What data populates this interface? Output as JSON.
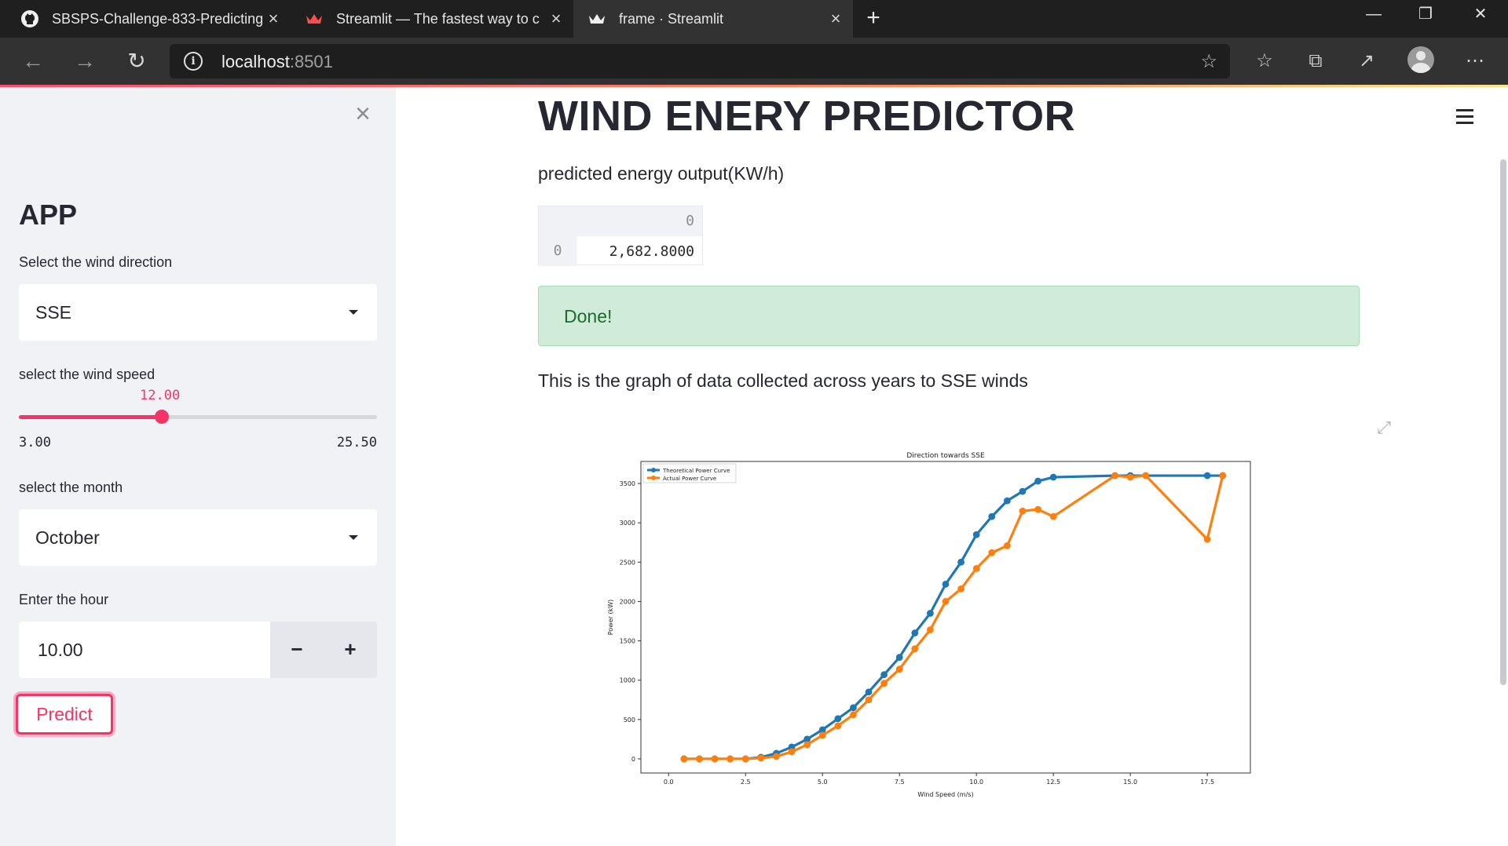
{
  "browser": {
    "tabs": [
      {
        "title": "SBSPS-Challenge-833-Predicting",
        "icon": "github-icon"
      },
      {
        "title": "Streamlit — The fastest way to cr",
        "icon": "streamlit-crown-icon"
      },
      {
        "title": "frame · Streamlit",
        "icon": "streamlit-crown-icon",
        "active": true
      }
    ],
    "address": {
      "host": "localhost",
      "port": ":8501"
    }
  },
  "sidebar": {
    "close_symbol": "×",
    "heading": "APP",
    "wind_direction": {
      "label": "Select the wind direction",
      "value": "SSE"
    },
    "wind_speed": {
      "label": "select the wind speed",
      "value": "12.00",
      "min": "3.00",
      "max": "25.50",
      "fraction": 0.4
    },
    "month": {
      "label": "select the month",
      "value": "October"
    },
    "hour": {
      "label": "Enter the hour",
      "value": "10.00",
      "minus": "−",
      "plus": "+"
    },
    "predict_label": "Predict"
  },
  "main": {
    "title": "WIND ENERY PREDICTOR",
    "subtitle": "predicted energy output(KW/h)",
    "dataframe": {
      "column_header": "0",
      "row_index": "0",
      "cell": "2,682.8000"
    },
    "success_message": "Done!",
    "graph_caption": "This is the graph of data collected across years to SSE winds"
  },
  "colors": {
    "accent": "#f63366",
    "series_theoretical": "#1f77b4",
    "series_actual": "#ff7f0e",
    "success_bg": "#d0ecd8"
  },
  "chart_data": {
    "type": "line",
    "title": "Direction towards SSE",
    "xlabel": "Wind Speed (m/s)",
    "ylabel": "Power (kW)",
    "xlim": [
      -0.9,
      18.9
    ],
    "ylim": [
      -180,
      3780
    ],
    "xticks": [
      "0.0",
      "2.5",
      "5.0",
      "7.5",
      "10.0",
      "12.5",
      "15.0",
      "17.5"
    ],
    "yticks": [
      "0",
      "500",
      "1000",
      "1500",
      "2000",
      "2500",
      "3000",
      "3500"
    ],
    "legend_position": "top-left",
    "series": [
      {
        "name": "Theoretical Power Curve",
        "x": [
          0.5,
          1.0,
          1.5,
          2.0,
          2.5,
          3.0,
          3.5,
          4.0,
          4.5,
          5.0,
          5.5,
          6.0,
          6.5,
          7.0,
          7.5,
          8.0,
          8.5,
          9.0,
          9.5,
          10.0,
          10.5,
          11.0,
          11.5,
          12.0,
          12.5,
          14.5,
          15.0,
          15.5,
          17.5,
          18.0
        ],
        "y": [
          0,
          0,
          0,
          0,
          0,
          20,
          70,
          150,
          250,
          370,
          510,
          650,
          850,
          1070,
          1290,
          1600,
          1850,
          2220,
          2500,
          2850,
          3080,
          3280,
          3400,
          3530,
          3580,
          3600,
          3600,
          3600,
          3600,
          3600
        ]
      },
      {
        "name": "Actual Power Curve",
        "x": [
          0.5,
          1.0,
          1.5,
          2.0,
          2.5,
          3.0,
          3.5,
          4.0,
          4.5,
          5.0,
          5.5,
          6.0,
          6.5,
          7.0,
          7.5,
          8.0,
          8.5,
          9.0,
          9.5,
          10.0,
          10.5,
          11.0,
          11.5,
          12.0,
          12.5,
          14.5,
          15.0,
          15.5,
          17.5,
          18.0
        ],
        "y": [
          0,
          0,
          0,
          0,
          0,
          10,
          30,
          90,
          180,
          300,
          420,
          560,
          750,
          960,
          1140,
          1400,
          1640,
          2000,
          2160,
          2420,
          2620,
          2710,
          3150,
          3170,
          3080,
          3600,
          3580,
          3600,
          2790,
          3600
        ]
      }
    ]
  }
}
